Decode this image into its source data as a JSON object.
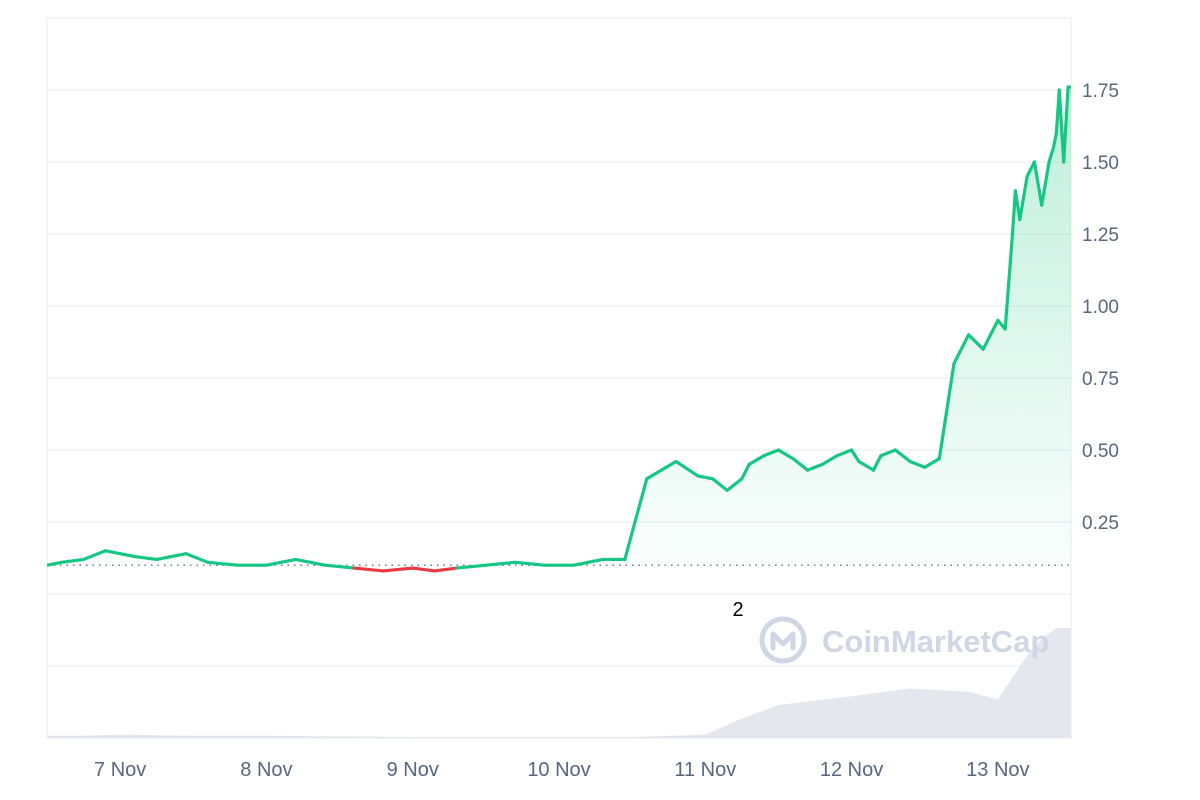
{
  "chart_data": {
    "type": "line",
    "x_labels": [
      "7 Nov",
      "8 Nov",
      "9 Nov",
      "10 Nov",
      "11 Nov",
      "12 Nov",
      "13 Nov"
    ],
    "y_ticks": [
      "1.75",
      "1.50",
      "1.25",
      "1.00",
      "0.75",
      "0.50",
      "0.25"
    ],
    "y_tick_values": [
      1.75,
      1.5,
      1.25,
      1.0,
      0.75,
      0.5,
      0.25
    ],
    "ylim": [
      -0.5,
      2.0
    ],
    "xlim": [
      6.5,
      13.5
    ],
    "baseline": 0.1,
    "grid": true,
    "colors": {
      "up": "#16c784",
      "down": "#ea3943",
      "grid": "#eff2f5",
      "area": "#16c784",
      "volume": "#e4e8ee"
    },
    "series": [
      {
        "x": [
          6.5,
          6.6,
          6.75,
          6.9,
          7.0,
          7.1,
          7.25,
          7.45,
          7.6,
          7.8,
          8.0,
          8.2,
          8.4,
          8.6,
          8.8,
          9.0,
          9.15,
          9.3,
          9.5,
          9.7,
          9.9,
          10.1,
          10.2,
          10.3,
          10.45,
          10.6,
          10.8,
          10.95,
          11.05,
          11.15,
          11.2,
          11.25,
          11.3,
          11.4,
          11.5,
          11.6,
          11.7,
          11.8,
          11.9,
          12.0,
          12.05,
          12.15,
          12.2,
          12.3,
          12.4,
          12.5,
          12.6,
          12.7,
          12.8,
          12.9,
          13.0,
          13.05,
          13.1,
          13.12,
          13.15,
          13.2,
          13.25,
          13.3,
          13.35,
          13.38,
          13.4,
          13.42,
          13.45,
          13.48,
          13.5
        ],
        "y": [
          0.1,
          0.11,
          0.12,
          0.15,
          0.14,
          0.13,
          0.12,
          0.14,
          0.11,
          0.1,
          0.1,
          0.12,
          0.1,
          0.09,
          0.08,
          0.09,
          0.08,
          0.09,
          0.1,
          0.11,
          0.1,
          0.1,
          0.11,
          0.12,
          0.12,
          0.4,
          0.46,
          0.41,
          0.4,
          0.36,
          0.38,
          0.4,
          0.45,
          0.48,
          0.5,
          0.47,
          0.43,
          0.45,
          0.48,
          0.5,
          0.46,
          0.43,
          0.48,
          0.5,
          0.46,
          0.44,
          0.47,
          0.8,
          0.9,
          0.85,
          0.95,
          0.92,
          1.25,
          1.4,
          1.3,
          1.45,
          1.5,
          1.35,
          1.5,
          1.55,
          1.6,
          1.75,
          1.5,
          1.76,
          1.76
        ]
      }
    ],
    "volume": {
      "x": [
        6.5,
        6.7,
        7.0,
        7.5,
        8.0,
        9.0,
        10.0,
        10.5,
        11.0,
        11.2,
        11.5,
        12.0,
        12.4,
        12.8,
        13.0,
        13.1,
        13.2,
        13.3,
        13.4,
        13.5
      ],
      "v": [
        0.02,
        0.02,
        0.03,
        0.02,
        0.02,
        0.01,
        0.01,
        0.01,
        0.03,
        0.15,
        0.3,
        0.38,
        0.45,
        0.42,
        0.35,
        0.55,
        0.75,
        0.9,
        1.0,
        1.0
      ]
    },
    "annotation": "2",
    "watermark": {
      "text": "CoinMarketCap",
      "icon": "coinmarketcap-logo-icon"
    }
  }
}
